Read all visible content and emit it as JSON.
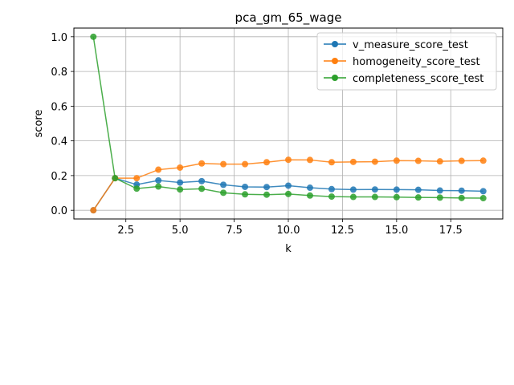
{
  "chart_data": {
    "type": "line",
    "title": "pca_gm_65_wage",
    "xlabel": "k",
    "ylabel": "score",
    "xlim": [
      0.1,
      19.9
    ],
    "ylim": [
      -0.05,
      1.05
    ],
    "xticks": [
      "2.5",
      "5.0",
      "7.5",
      "10.0",
      "12.5",
      "15.0",
      "17.5"
    ],
    "yticks": [
      "0.0",
      "0.2",
      "0.4",
      "0.6",
      "0.8",
      "1.0"
    ],
    "grid": true,
    "legend_position": "top-right",
    "x": [
      1,
      2,
      3,
      4,
      5,
      6,
      7,
      8,
      9,
      10,
      11,
      12,
      13,
      14,
      15,
      16,
      17,
      18,
      19
    ],
    "series": [
      {
        "name": "v_measure_score_test",
        "color": "#1f77b4",
        "values": [
          0.0,
          0.185,
          0.148,
          0.172,
          0.16,
          0.168,
          0.147,
          0.135,
          0.134,
          0.142,
          0.13,
          0.122,
          0.119,
          0.12,
          0.119,
          0.118,
          0.114,
          0.113,
          0.11
        ]
      },
      {
        "name": "homogeneity_score_test",
        "color": "#ff7f0e",
        "values": [
          0.0,
          0.185,
          0.185,
          0.234,
          0.246,
          0.27,
          0.266,
          0.266,
          0.277,
          0.291,
          0.29,
          0.277,
          0.279,
          0.28,
          0.286,
          0.285,
          0.282,
          0.285,
          0.286
        ]
      },
      {
        "name": "completeness_score_test",
        "color": "#2ca02c",
        "values": [
          1.0,
          0.185,
          0.125,
          0.137,
          0.12,
          0.124,
          0.101,
          0.092,
          0.09,
          0.094,
          0.085,
          0.079,
          0.077,
          0.077,
          0.076,
          0.074,
          0.073,
          0.071,
          0.07
        ]
      }
    ]
  }
}
